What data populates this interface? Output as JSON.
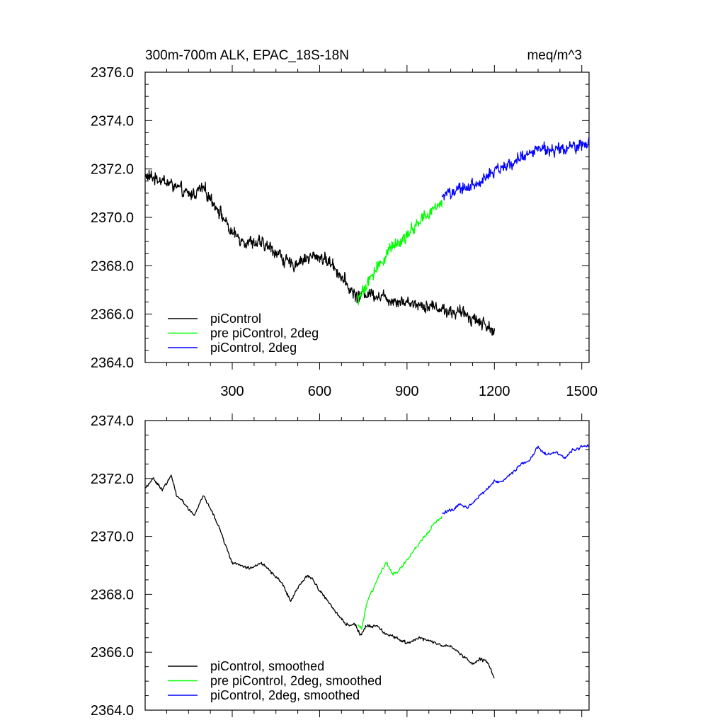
{
  "chart_data": [
    {
      "type": "line",
      "title": "300m-700m ALK, EPAC_18S-18N",
      "units": "meq/m^3",
      "xlim": [
        1,
        1525
      ],
      "ylim": [
        2364,
        2376
      ],
      "xticks": [
        300,
        600,
        900,
        1200,
        1500
      ],
      "yticks": [
        2364,
        2366,
        2368,
        2370,
        2372,
        2374,
        2376
      ],
      "ytick_labels": [
        "2364.0",
        "2366.0",
        "2368.0",
        "2370.0",
        "2372.0",
        "2374.0",
        "2376.0"
      ],
      "show_xtick_labels": true,
      "grid": false,
      "legend_position": "bottom-left",
      "series": [
        {
          "name": "piControl",
          "color": "#000000",
          "x": [
            1,
            50,
            100,
            150,
            200,
            250,
            300,
            350,
            400,
            450,
            500,
            550,
            600,
            650,
            700,
            730,
            760,
            800,
            850,
            900,
            950,
            1000,
            1050,
            1100,
            1150,
            1200
          ],
          "y": [
            2371.7,
            2371.6,
            2371.3,
            2370.9,
            2371.2,
            2370.4,
            2369.3,
            2369.0,
            2368.9,
            2368.6,
            2368.0,
            2368.3,
            2368.4,
            2368.0,
            2367.1,
            2366.7,
            2366.9,
            2366.8,
            2366.6,
            2366.5,
            2366.4,
            2366.3,
            2366.1,
            2366.0,
            2365.7,
            2365.3
          ]
        },
        {
          "name": "pre piControl, 2deg",
          "color": "#00ff00",
          "x": [
            730,
            750,
            800,
            850,
            900,
            950,
            1000,
            1020
          ],
          "y": [
            2366.6,
            2366.9,
            2368.0,
            2368.8,
            2369.3,
            2369.9,
            2370.4,
            2370.7
          ]
        },
        {
          "name": "piControl, 2deg",
          "color": "#0000ff",
          "x": [
            1020,
            1050,
            1100,
            1150,
            1200,
            1250,
            1300,
            1350,
            1400,
            1450,
            1500,
            1525
          ],
          "y": [
            2370.9,
            2371.0,
            2371.2,
            2371.5,
            2371.9,
            2372.2,
            2372.5,
            2372.9,
            2372.8,
            2372.8,
            2373.0,
            2373.1
          ]
        }
      ]
    },
    {
      "type": "line",
      "xlim": [
        1,
        1525
      ],
      "ylim": [
        2364,
        2374
      ],
      "xticks": [
        300,
        600,
        900,
        1200,
        1500
      ],
      "yticks": [
        2364,
        2366,
        2368,
        2370,
        2372,
        2374
      ],
      "ytick_labels": [
        "2364.0",
        "2366.0",
        "2368.0",
        "2370.0",
        "2372.0",
        "2374.0"
      ],
      "show_xtick_labels": false,
      "grid": false,
      "legend_position": "bottom-left",
      "series": [
        {
          "name": "piControl, smoothed",
          "color": "#000000",
          "x": [
            1,
            30,
            60,
            90,
            110,
            140,
            170,
            200,
            230,
            260,
            290,
            300,
            330,
            360,
            400,
            440,
            470,
            500,
            530,
            560,
            590,
            610,
            640,
            670,
            700,
            720,
            740,
            760,
            800,
            830,
            860,
            900,
            950,
            1000,
            1050,
            1100,
            1130,
            1150,
            1180,
            1200
          ],
          "y": [
            2371.7,
            2372.0,
            2371.6,
            2372.1,
            2371.4,
            2371.1,
            2370.7,
            2371.4,
            2370.9,
            2370.2,
            2369.3,
            2369.1,
            2369.0,
            2368.9,
            2369.1,
            2368.7,
            2368.4,
            2367.8,
            2368.3,
            2368.7,
            2368.3,
            2368.0,
            2367.6,
            2367.2,
            2366.9,
            2367.0,
            2366.6,
            2366.9,
            2366.9,
            2366.6,
            2366.5,
            2366.3,
            2366.5,
            2366.3,
            2366.2,
            2365.8,
            2365.6,
            2365.8,
            2365.6,
            2365.1
          ]
        },
        {
          "name": "pre piControl, 2deg, smoothed",
          "color": "#00ff00",
          "x": [
            730,
            745,
            760,
            780,
            800,
            830,
            850,
            870,
            900,
            930,
            960,
            990,
            1020
          ],
          "y": [
            2366.9,
            2366.8,
            2367.6,
            2368.1,
            2368.6,
            2369.1,
            2368.7,
            2368.8,
            2369.2,
            2369.6,
            2370.0,
            2370.4,
            2370.7
          ]
        },
        {
          "name": "piControl, 2deg, smoothed",
          "color": "#0000ff",
          "x": [
            1020,
            1050,
            1080,
            1110,
            1140,
            1170,
            1200,
            1230,
            1260,
            1290,
            1320,
            1350,
            1380,
            1410,
            1440,
            1470,
            1500,
            1525
          ],
          "y": [
            2370.8,
            2370.9,
            2371.1,
            2371.0,
            2371.3,
            2371.6,
            2371.9,
            2371.9,
            2372.2,
            2372.5,
            2372.6,
            2373.1,
            2372.8,
            2372.9,
            2372.7,
            2373.0,
            2373.1,
            2373.1
          ]
        }
      ]
    }
  ]
}
